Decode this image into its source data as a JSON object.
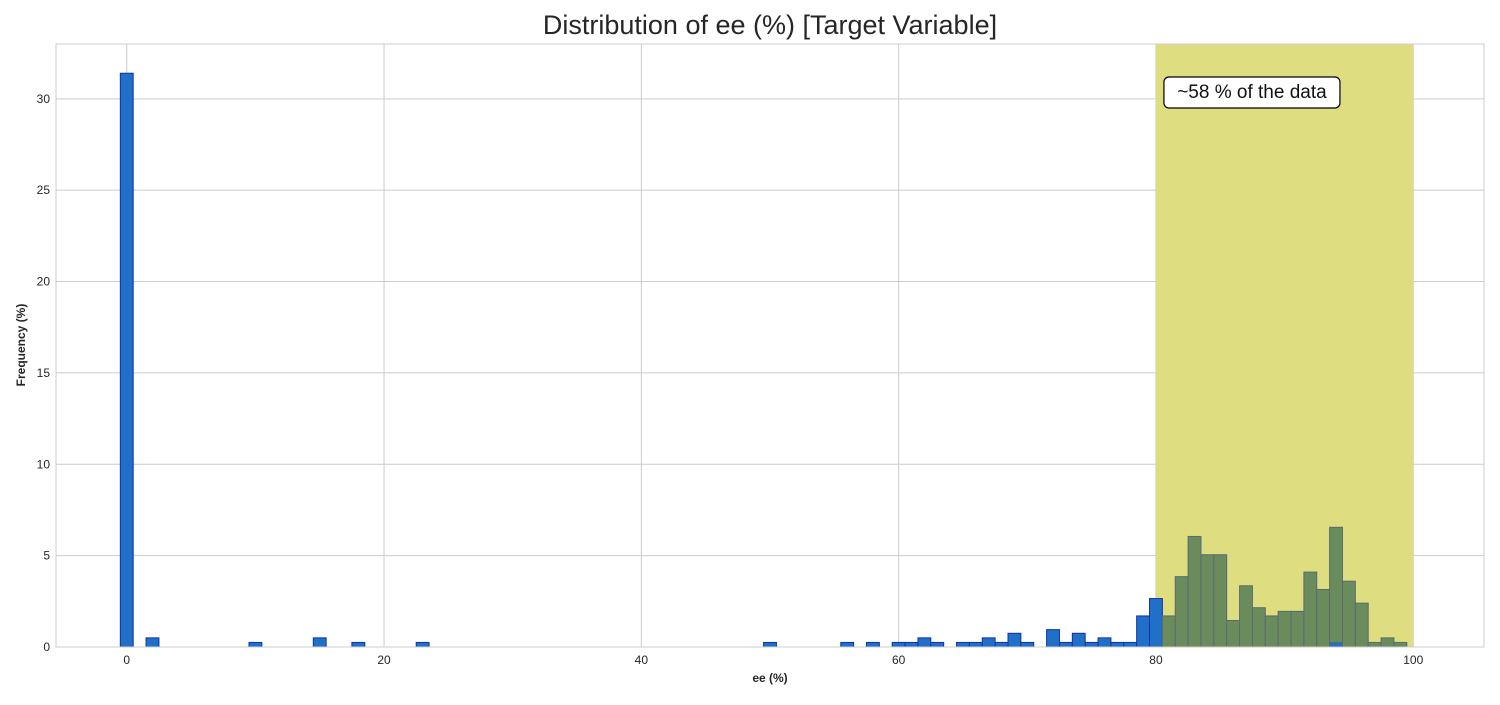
{
  "chart_data": {
    "type": "bar",
    "title": "Distribution of ee (%) [Target Variable]",
    "xlabel": "ee (%)",
    "ylabel": "Frequency (%)",
    "xlim": [
      -5.5,
      105.5
    ],
    "ylim": [
      0,
      33
    ],
    "xticks": [
      0,
      20,
      40,
      60,
      80,
      100
    ],
    "yticks": [
      0,
      5,
      10,
      15,
      20,
      25,
      30
    ],
    "grid": true,
    "bin_width": 1,
    "highlight_region": {
      "x_range": [
        80,
        100
      ],
      "color": "#dcdc7a",
      "annotation": "~58 % of the data"
    },
    "series": [
      {
        "color": "#2070c8",
        "edge_color": "#1030b0",
        "bins": [
          {
            "x": 0,
            "value": 31.4
          },
          {
            "x": 2,
            "value": 0.5
          },
          {
            "x": 10,
            "value": 0.25
          },
          {
            "x": 15,
            "value": 0.5
          },
          {
            "x": 18,
            "value": 0.25
          },
          {
            "x": 23,
            "value": 0.25
          },
          {
            "x": 50,
            "value": 0.25
          },
          {
            "x": 56,
            "value": 0.25
          },
          {
            "x": 58,
            "value": 0.25
          },
          {
            "x": 60,
            "value": 0.25
          },
          {
            "x": 61,
            "value": 0.25
          },
          {
            "x": 62,
            "value": 0.5
          },
          {
            "x": 63,
            "value": 0.25
          },
          {
            "x": 65,
            "value": 0.25
          },
          {
            "x": 66,
            "value": 0.25
          },
          {
            "x": 67,
            "value": 0.5
          },
          {
            "x": 68,
            "value": 0.25
          },
          {
            "x": 69,
            "value": 0.75
          },
          {
            "x": 70,
            "value": 0.25
          },
          {
            "x": 72,
            "value": 0.95
          },
          {
            "x": 73,
            "value": 0.25
          },
          {
            "x": 74,
            "value": 0.75
          },
          {
            "x": 75,
            "value": 0.25
          },
          {
            "x": 76,
            "value": 0.5
          },
          {
            "x": 77,
            "value": 0.25
          },
          {
            "x": 78,
            "value": 0.25
          },
          {
            "x": 79,
            "value": 1.7
          },
          {
            "x": 80,
            "value": 2.65
          }
        ]
      },
      {
        "color": "#6a8c5c",
        "edge_color": "#5a6a70",
        "bins": [
          {
            "x": 81,
            "value": 1.7
          },
          {
            "x": 82,
            "value": 3.85
          },
          {
            "x": 83,
            "value": 6.05
          },
          {
            "x": 84,
            "value": 5.05
          },
          {
            "x": 85,
            "value": 5.05
          },
          {
            "x": 86,
            "value": 1.45
          },
          {
            "x": 87,
            "value": 3.35
          },
          {
            "x": 88,
            "value": 2.15
          },
          {
            "x": 89,
            "value": 1.7
          },
          {
            "x": 90,
            "value": 1.95
          },
          {
            "x": 91,
            "value": 1.95
          },
          {
            "x": 92,
            "value": 4.1
          },
          {
            "x": 93,
            "value": 3.15
          },
          {
            "x": 94,
            "value": 6.55
          },
          {
            "x": 95,
            "value": 3.6
          },
          {
            "x": 96,
            "value": 2.4
          },
          {
            "x": 97,
            "value": 0.25
          },
          {
            "x": 98,
            "value": 0.5
          },
          {
            "x": 99,
            "value": 0.25
          }
        ]
      }
    ],
    "overlay_bins": [
      {
        "x": 94,
        "value": 0.25
      }
    ]
  }
}
